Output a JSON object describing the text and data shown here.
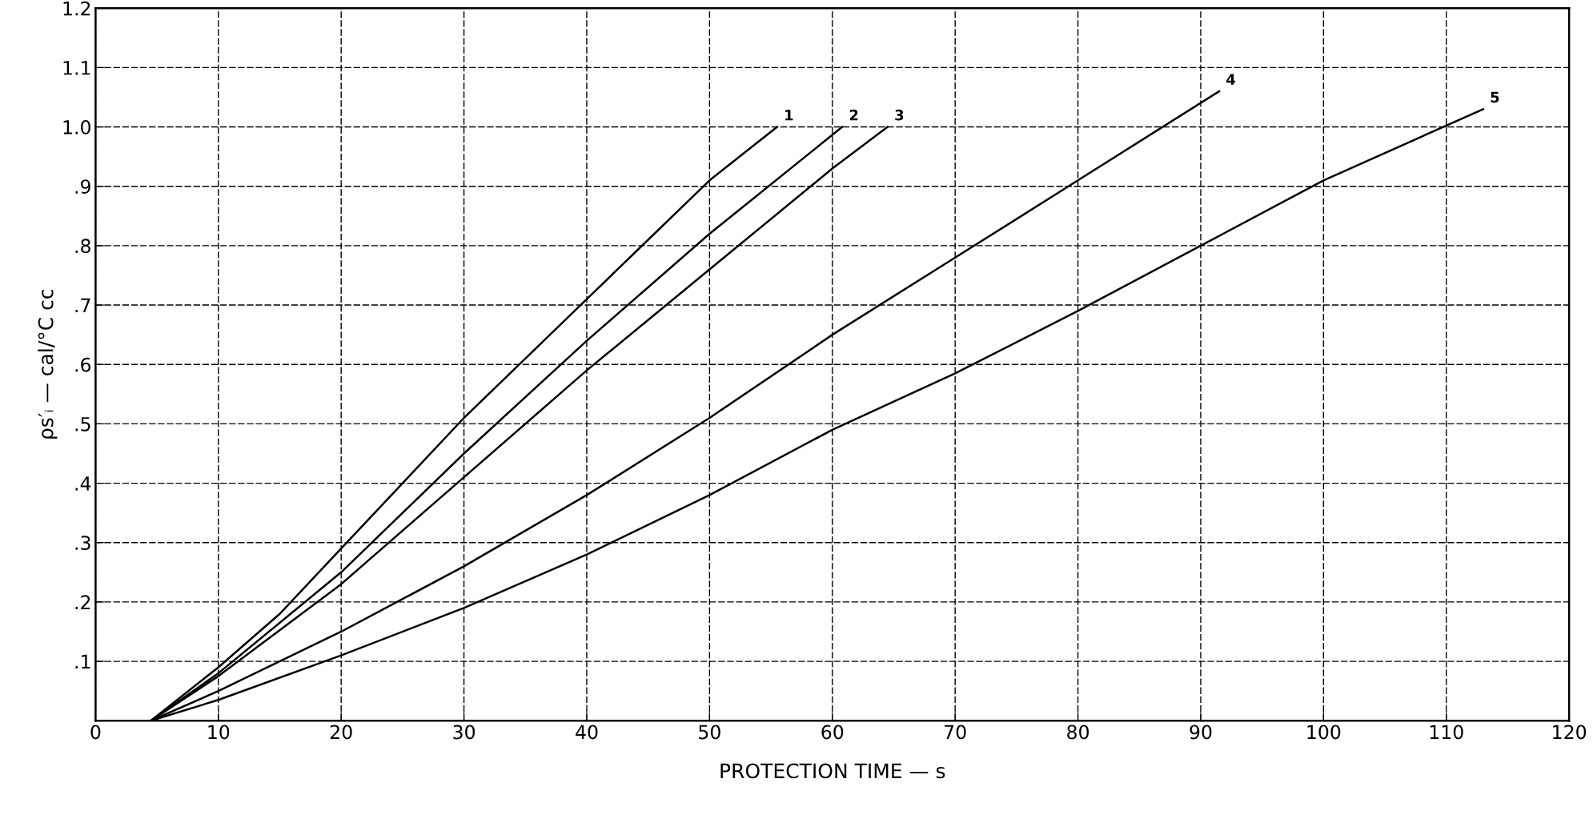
{
  "chart_data": {
    "type": "line",
    "xlabel": "PROTECTION TIME — s",
    "ylabel": "ρs′ᵢ — cal/°C cc",
    "xlim": [
      0,
      120
    ],
    "ylim": [
      0,
      1.2
    ],
    "xticks": [
      0,
      10,
      20,
      30,
      40,
      50,
      60,
      70,
      80,
      90,
      100,
      110,
      120
    ],
    "yticks": [
      {
        "value": 0,
        "label": null
      },
      {
        "value": 0.1,
        "label": ".1"
      },
      {
        "value": 0.2,
        "label": ".2"
      },
      {
        "value": 0.3,
        "label": ".3"
      },
      {
        "value": 0.4,
        "label": ".4"
      },
      {
        "value": 0.5,
        "label": ".5"
      },
      {
        "value": 0.6,
        "label": ".6"
      },
      {
        "value": 0.7,
        "label": ".7"
      },
      {
        "value": 0.8,
        "label": ".8"
      },
      {
        "value": 0.9,
        "label": ".9"
      },
      {
        "value": 1.0,
        "label": "1.0"
      },
      {
        "value": 1.1,
        "label": "1.1"
      },
      {
        "value": 1.2,
        "label": "1.2"
      }
    ],
    "grid": true,
    "marker": "none",
    "line_style": "solid",
    "series": [
      {
        "name": "1",
        "color": "#000000",
        "x": [
          4.5,
          10,
          15,
          20,
          25,
          30,
          35,
          40,
          45,
          50,
          55.5
        ],
        "values": [
          0,
          0.09,
          0.18,
          0.29,
          0.4,
          0.51,
          0.61,
          0.71,
          0.81,
          0.91,
          1.0
        ]
      },
      {
        "name": "2",
        "color": "#000000",
        "x": [
          4.5,
          10,
          20,
          30,
          40,
          50,
          60.8
        ],
        "values": [
          0,
          0.08,
          0.25,
          0.45,
          0.64,
          0.82,
          1.0
        ]
      },
      {
        "name": "3",
        "color": "#000000",
        "x": [
          4.5,
          10,
          20,
          30,
          40,
          50,
          60,
          64.5
        ],
        "values": [
          0,
          0.075,
          0.23,
          0.41,
          0.59,
          0.76,
          0.93,
          1.0
        ]
      },
      {
        "name": "4",
        "color": "#000000",
        "x": [
          4.5,
          10,
          20,
          30,
          40,
          50,
          60,
          70,
          80,
          91.5
        ],
        "values": [
          0,
          0.05,
          0.15,
          0.26,
          0.38,
          0.51,
          0.65,
          0.78,
          0.91,
          1.06
        ]
      },
      {
        "name": "5",
        "color": "#000000",
        "x": [
          4.5,
          10,
          20,
          30,
          40,
          50,
          60,
          70,
          80,
          90,
          100,
          113
        ],
        "values": [
          0,
          0.035,
          0.11,
          0.19,
          0.28,
          0.38,
          0.49,
          0.585,
          0.69,
          0.8,
          0.91,
          1.03
        ]
      }
    ]
  }
}
